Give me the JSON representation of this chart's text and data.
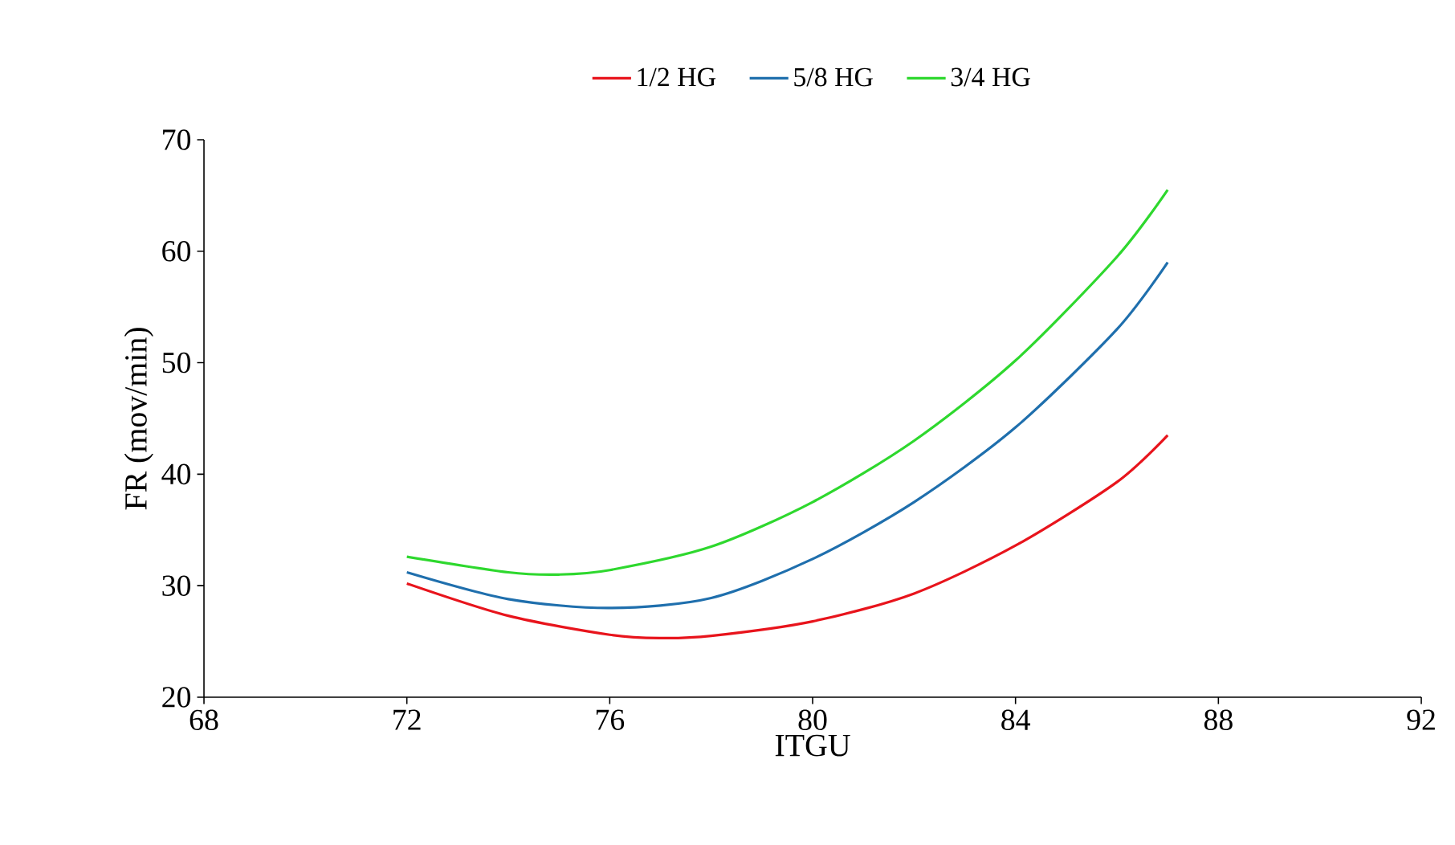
{
  "chart_data": {
    "type": "line",
    "xlabel": "ITGU",
    "ylabel": "FR (mov/min)",
    "xlim": [
      68,
      92
    ],
    "ylim": [
      20,
      70
    ],
    "xticks": [
      68,
      72,
      76,
      80,
      84,
      88,
      92
    ],
    "yticks": [
      20,
      30,
      40,
      50,
      60,
      70
    ],
    "grid": false,
    "legend": "top",
    "marker": "none",
    "line_style": "solid",
    "series": [
      {
        "name": "1/2 HG",
        "color": "#e8141c",
        "x": [
          72,
          74,
          76,
          77,
          78,
          80,
          82,
          84,
          86,
          87
        ],
        "values": [
          30.2,
          27.3,
          25.6,
          25.3,
          25.5,
          26.8,
          29.3,
          33.6,
          39.3,
          43.5
        ]
      },
      {
        "name": "5/8 HG",
        "color": "#1f6fad",
        "x": [
          72,
          74,
          76,
          78,
          80,
          82,
          84,
          86,
          87
        ],
        "values": [
          31.2,
          28.8,
          28.0,
          28.9,
          32.4,
          37.5,
          44.2,
          53,
          59
        ]
      },
      {
        "name": "3/4 HG",
        "color": "#2ed82e",
        "x": [
          72,
          74,
          75,
          76,
          78,
          80,
          82,
          84,
          86,
          87
        ],
        "values": [
          32.6,
          31.2,
          31.0,
          31.4,
          33.5,
          37.5,
          43,
          50.2,
          59.5,
          65.5
        ]
      }
    ]
  }
}
